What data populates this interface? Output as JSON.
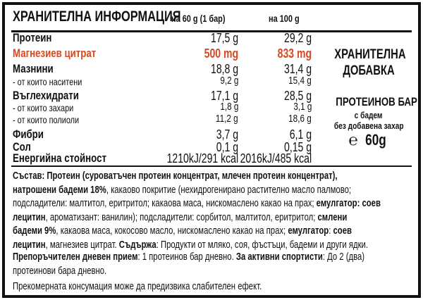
{
  "header": {
    "title": "ХРАНИТЕЛНА ИНФОРМАЦИЯ",
    "col1": "на 60 g (1 бар)",
    "col2": "на 100 g"
  },
  "rows": [
    {
      "label": "Протеин",
      "v1": "17,5 g",
      "v2": "29,2 g",
      "style": "main"
    },
    {
      "label": "Магнезиев цитрат",
      "v1": "500 mg",
      "v2": "833 mg",
      "style": "highlight"
    },
    {
      "label": "Мазнини",
      "v1": "18,8 g",
      "v2": "31,4 g",
      "style": "main"
    },
    {
      "label": "- от които наситени",
      "v1": "9,2 g",
      "v2": "15,4 g",
      "style": "sub"
    },
    {
      "label": "Въглехидрати",
      "v1": "17,1 g",
      "v2": "28,5 g",
      "style": "main"
    },
    {
      "label": "- от които захари",
      "v1": "1,8 g",
      "v2": "3,1 g",
      "style": "sub"
    },
    {
      "label": "- от които полиоли",
      "v1": "11,2 g",
      "v2": "18,6 g",
      "style": "sub"
    },
    {
      "label": "Фибри",
      "v1": "3,7 g",
      "v2": "6,1 g",
      "style": "main"
    },
    {
      "label": "Сол",
      "v1": "0,1 g",
      "v2": "0,15 g",
      "style": "main"
    },
    {
      "label": "Енергийна стойност",
      "v1": "1210kJ/291 kcal",
      "v2": "2016kJ/485 kcal",
      "style": "main"
    }
  ],
  "side": {
    "line1": "ХРАНИТЕЛНА",
    "line2": "ДОБАВКА",
    "product": "ПРОТЕИНОВ БАР",
    "sub1": "с бадем",
    "sub2": "без добавена захар",
    "estimate_mark": "℮",
    "weight": "60g"
  },
  "composition": [
    [
      {
        "t": "Състав: Протеин (суроватъчен протеин концентрат, млечен протеин концентрат),",
        "b": true
      }
    ],
    [
      {
        "t": "натрошени  бадеми 18%",
        "b": true
      },
      {
        "t": ", какаово покритие (нехидрогенирано растително масло палмово;",
        "b": false
      }
    ],
    [
      {
        "t": "подсладители: малтитол, еритритол; какаова маса, нискомаслено какао на прах; ",
        "b": false
      },
      {
        "t": "емулгатор: соев",
        "b": true
      }
    ],
    [
      {
        "t": "лецитин",
        "b": true
      },
      {
        "t": ", ароматизант: ванилин); подсладители: сорбитол, малтитол, еритритол; ",
        "b": false
      },
      {
        "t": "смлени",
        "b": true
      }
    ],
    [
      {
        "t": "бадеми 9%",
        "b": true
      },
      {
        "t": ", какаова маса, кокосово масло, нискомаслено какао на прах; ",
        "b": false
      },
      {
        "t": "емулгатор",
        "b": true
      },
      {
        "t": ": ",
        "b": false
      },
      {
        "t": "соев",
        "b": true
      }
    ],
    [
      {
        "t": "лецитин",
        "b": true
      },
      {
        "t": ", магнезиев цитрат. ",
        "b": false
      },
      {
        "t": "Съдържа",
        "b": true
      },
      {
        "t": ": Продукти от мляко, соя, фъстъци, бадеми и други ядки.",
        "b": false
      }
    ]
  ],
  "recommendation": [
    [
      {
        "t": "Препоръчителен дневен прием",
        "b": true
      },
      {
        "t": ": 1 протеинов бар дневно. ",
        "b": false
      },
      {
        "t": "За активни спортисти",
        "b": true
      },
      {
        "t": ": До 2 (два)",
        "b": false
      }
    ],
    [
      {
        "t": "протеинови бара дневно.",
        "b": false
      }
    ]
  ],
  "warning": "Прекомерната консумация може да предизвика слабителен ефект.",
  "colors": {
    "highlight": "#d9471f",
    "text": "#111111"
  }
}
